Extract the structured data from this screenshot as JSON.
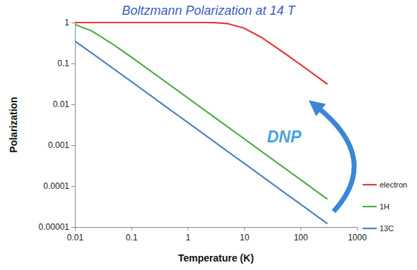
{
  "chart_data": {
    "type": "line",
    "title": "Boltzmann Polarization at 14 T",
    "x_label": "Temperature (K)",
    "y_label": "Polarization",
    "annotation": "DNP",
    "log": true,
    "grid": false,
    "legend": "right",
    "xlim": [
      0.01,
      1000
    ],
    "ylim": [
      1e-05,
      1
    ],
    "xticks": [
      0.01,
      0.1,
      1,
      10,
      100,
      1000
    ],
    "yticks": [
      1e-05,
      0.0001,
      0.001,
      0.01,
      0.1,
      1
    ],
    "x": [
      0.01,
      0.02,
      0.05,
      0.1,
      0.2,
      0.5,
      1,
      2,
      3,
      5,
      10,
      20,
      50,
      100,
      200,
      300
    ],
    "series": [
      {
        "name": "electron",
        "color": "#e03a3a",
        "values": [
          1,
          1,
          1,
          1,
          1,
          1,
          1,
          1,
          0.996,
          0.95,
          0.73,
          0.44,
          0.185,
          0.094,
          0.047,
          0.031
        ]
      },
      {
        "name": "1H",
        "color": "#4cae4c",
        "values": [
          0.9,
          0.62,
          0.28,
          0.143,
          0.072,
          0.0288,
          0.0144,
          0.0072,
          0.0048,
          0.00288,
          0.00144,
          0.00072,
          0.000288,
          0.000144,
          7.2e-05,
          4.8e-05
        ]
      },
      {
        "name": "13C",
        "color": "#4f81bd",
        "values": [
          0.35,
          0.178,
          0.072,
          0.036,
          0.018,
          0.0072,
          0.0036,
          0.0018,
          0.0012,
          0.00072,
          0.00036,
          0.00018,
          7.2e-05,
          3.6e-05,
          1.8e-05,
          1.2e-05
        ]
      }
    ]
  }
}
